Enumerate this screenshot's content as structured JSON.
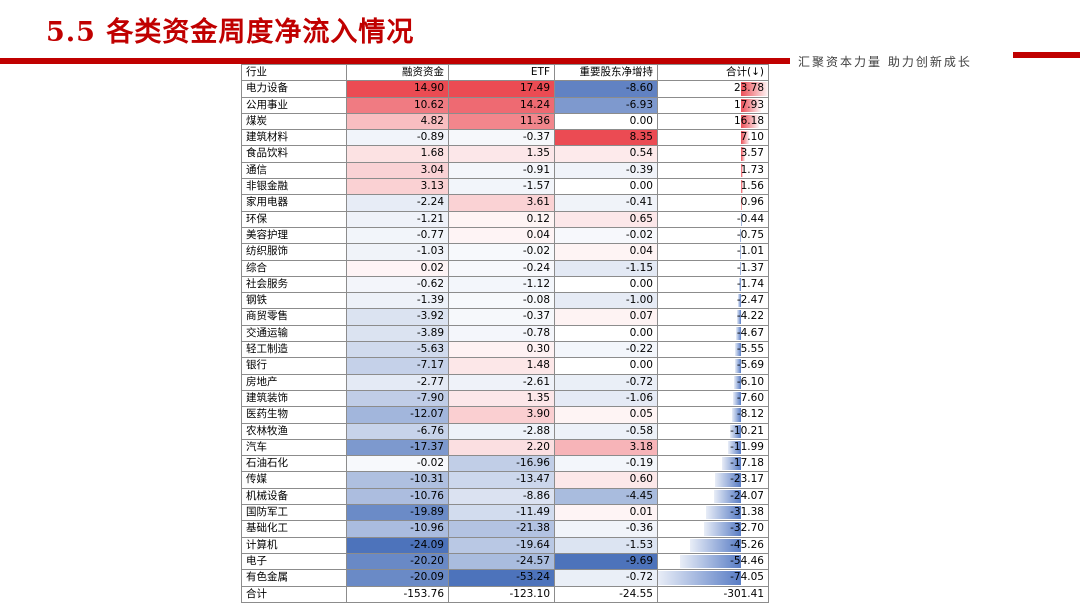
{
  "title": "5.5 各类资金周度净流入情况",
  "slogan": "汇聚资本力量 助力创新成长",
  "colors": {
    "brand_red": "#c00000",
    "pos_red": "#e8303a",
    "neg_blue": "#3a64b4",
    "bar_blue": "#6f94d2"
  },
  "table": {
    "headers": [
      "行业",
      "融资资金",
      "ETF",
      "重要股东净增持",
      "合计(↓)"
    ],
    "rows": [
      {
        "name": "电力设备",
        "v": [
          "14.90",
          "17.49",
          "-8.60",
          "23.78"
        ]
      },
      {
        "name": "公用事业",
        "v": [
          "10.62",
          "14.24",
          "-6.93",
          "17.93"
        ]
      },
      {
        "name": "煤炭",
        "v": [
          "4.82",
          "11.36",
          "0.00",
          "16.18"
        ]
      },
      {
        "name": "建筑材料",
        "v": [
          "-0.89",
          "-0.37",
          "8.35",
          "7.10"
        ]
      },
      {
        "name": "食品饮料",
        "v": [
          "1.68",
          "1.35",
          "0.54",
          "3.57"
        ]
      },
      {
        "name": "通信",
        "v": [
          "3.04",
          "-0.91",
          "-0.39",
          "1.73"
        ]
      },
      {
        "name": "非银金融",
        "v": [
          "3.13",
          "-1.57",
          "0.00",
          "1.56"
        ]
      },
      {
        "name": "家用电器",
        "v": [
          "-2.24",
          "3.61",
          "-0.41",
          "0.96"
        ]
      },
      {
        "name": "环保",
        "v": [
          "-1.21",
          "0.12",
          "0.65",
          "-0.44"
        ]
      },
      {
        "name": "美容护理",
        "v": [
          "-0.77",
          "0.04",
          "-0.02",
          "-0.75"
        ]
      },
      {
        "name": "纺织服饰",
        "v": [
          "-1.03",
          "-0.02",
          "0.04",
          "-1.01"
        ]
      },
      {
        "name": "综合",
        "v": [
          "0.02",
          "-0.24",
          "-1.15",
          "-1.37"
        ]
      },
      {
        "name": "社会服务",
        "v": [
          "-0.62",
          "-1.12",
          "0.00",
          "-1.74"
        ]
      },
      {
        "name": "钢铁",
        "v": [
          "-1.39",
          "-0.08",
          "-1.00",
          "-2.47"
        ]
      },
      {
        "name": "商贸零售",
        "v": [
          "-3.92",
          "-0.37",
          "0.07",
          "-4.22"
        ]
      },
      {
        "name": "交通运输",
        "v": [
          "-3.89",
          "-0.78",
          "0.00",
          "-4.67"
        ]
      },
      {
        "name": "轻工制造",
        "v": [
          "-5.63",
          "0.30",
          "-0.22",
          "-5.55"
        ]
      },
      {
        "name": "银行",
        "v": [
          "-7.17",
          "1.48",
          "0.00",
          "-5.69"
        ]
      },
      {
        "name": "房地产",
        "v": [
          "-2.77",
          "-2.61",
          "-0.72",
          "-6.10"
        ]
      },
      {
        "name": "建筑装饰",
        "v": [
          "-7.90",
          "1.35",
          "-1.06",
          "-7.60"
        ]
      },
      {
        "name": "医药生物",
        "v": [
          "-12.07",
          "3.90",
          "0.05",
          "-8.12"
        ]
      },
      {
        "name": "农林牧渔",
        "v": [
          "-6.76",
          "-2.88",
          "-0.58",
          "-10.21"
        ]
      },
      {
        "name": "汽车",
        "v": [
          "-17.37",
          "2.20",
          "3.18",
          "-11.99"
        ]
      },
      {
        "name": "石油石化",
        "v": [
          "-0.02",
          "-16.96",
          "-0.19",
          "-17.18"
        ]
      },
      {
        "name": "传媒",
        "v": [
          "-10.31",
          "-13.47",
          "0.60",
          "-23.17"
        ]
      },
      {
        "name": "机械设备",
        "v": [
          "-10.76",
          "-8.86",
          "-4.45",
          "-24.07"
        ]
      },
      {
        "name": "国防军工",
        "v": [
          "-19.89",
          "-11.49",
          "0.01",
          "-31.38"
        ]
      },
      {
        "name": "基础化工",
        "v": [
          "-10.96",
          "-21.38",
          "-0.36",
          "-32.70"
        ]
      },
      {
        "name": "计算机",
        "v": [
          "-24.09",
          "-19.64",
          "-1.53",
          "-45.26"
        ]
      },
      {
        "name": "电子",
        "v": [
          "-20.20",
          "-24.57",
          "-9.69",
          "-54.46"
        ]
      },
      {
        "name": "有色金属",
        "v": [
          "-20.09",
          "-53.24",
          "-0.72",
          "-74.05"
        ]
      }
    ],
    "total": {
      "name": "合计",
      "v": [
        "-153.76",
        "-123.10",
        "-24.55",
        "-301.41"
      ]
    }
  }
}
